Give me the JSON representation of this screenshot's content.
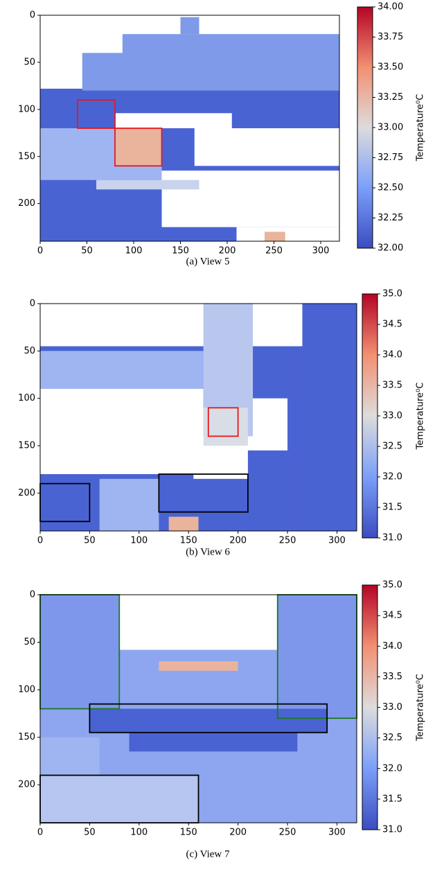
{
  "chart_data": [
    {
      "type": "heatmap",
      "caption": "(a) View 5",
      "xlim": [
        0,
        320
      ],
      "ylim": [
        240,
        0
      ],
      "xticks": [
        0,
        50,
        100,
        150,
        200,
        250,
        300
      ],
      "yticks": [
        0,
        50,
        100,
        150,
        200
      ],
      "colorbar": {
        "label": "Temperature⁰C",
        "lim": [
          32,
          34
        ],
        "ticks": [
          {
            "value": 32,
            "label": "32.00"
          },
          32.25,
          {
            "value": 32.5,
            "label": "32.50"
          },
          32.75,
          {
            "value": 33,
            "label": "33.00"
          },
          33.25,
          {
            "value": 33.5,
            "label": "33.50"
          },
          33.75,
          {
            "value": 34,
            "label": "34.00"
          }
        ]
      },
      "boxes": [
        {
          "x": [
            40,
            80
          ],
          "y": [
            90,
            120
          ],
          "color": "#e8161b"
        },
        {
          "x": [
            80,
            130
          ],
          "y": [
            120,
            160
          ],
          "color": "#e8161b"
        }
      ]
    },
    {
      "type": "heatmap",
      "caption": "(b) View 6",
      "xlim": [
        0,
        320
      ],
      "ylim": [
        240,
        0
      ],
      "xticks": [
        0,
        50,
        100,
        150,
        200,
        250,
        300
      ],
      "yticks": [
        0,
        50,
        100,
        150,
        200
      ],
      "colorbar": {
        "label": "Temperature⁰C",
        "lim": [
          31,
          35
        ],
        "ticks": [
          {
            "value": 31,
            "label": "31.0"
          },
          31.5,
          {
            "value": 32,
            "label": "32.0"
          },
          32.5,
          {
            "value": 33,
            "label": "33.0"
          },
          33.5,
          {
            "value": 34,
            "label": "34.0"
          },
          34.5,
          {
            "value": 35,
            "label": "35.0"
          }
        ]
      },
      "boxes": [
        {
          "x": [
            170,
            200
          ],
          "y": [
            110,
            140
          ],
          "color": "#e8161b"
        },
        {
          "x": [
            0,
            50
          ],
          "y": [
            190,
            230
          ],
          "color": "#000000"
        },
        {
          "x": [
            120,
            210
          ],
          "y": [
            180,
            220
          ],
          "color": "#000000"
        }
      ]
    },
    {
      "type": "heatmap",
      "caption": "(c) View 7",
      "xlim": [
        0,
        320
      ],
      "ylim": [
        240,
        0
      ],
      "xticks": [
        0,
        50,
        100,
        150,
        200,
        250,
        300
      ],
      "yticks": [
        0,
        50,
        100,
        150,
        200
      ],
      "colorbar": {
        "label": "Temperature⁰C",
        "lim": [
          31,
          35
        ],
        "ticks": [
          {
            "value": 31,
            "label": "31.0"
          },
          31.5,
          {
            "value": 32,
            "label": "32.0"
          },
          32.5,
          {
            "value": 33,
            "label": "33.0"
          },
          33.5,
          {
            "value": 34,
            "label": "34.0"
          },
          34.5,
          {
            "value": 35,
            "label": "35.0"
          }
        ]
      },
      "boxes": [
        {
          "x": [
            0,
            80
          ],
          "y": [
            0,
            120
          ],
          "color": "#1a7a1a"
        },
        {
          "x": [
            240,
            320
          ],
          "y": [
            0,
            130
          ],
          "color": "#1a7a1a"
        },
        {
          "x": [
            50,
            290
          ],
          "y": [
            115,
            145
          ],
          "color": "#000000"
        },
        {
          "x": [
            0,
            160
          ],
          "y": [
            190,
            240
          ],
          "color": "#000000"
        }
      ]
    }
  ]
}
